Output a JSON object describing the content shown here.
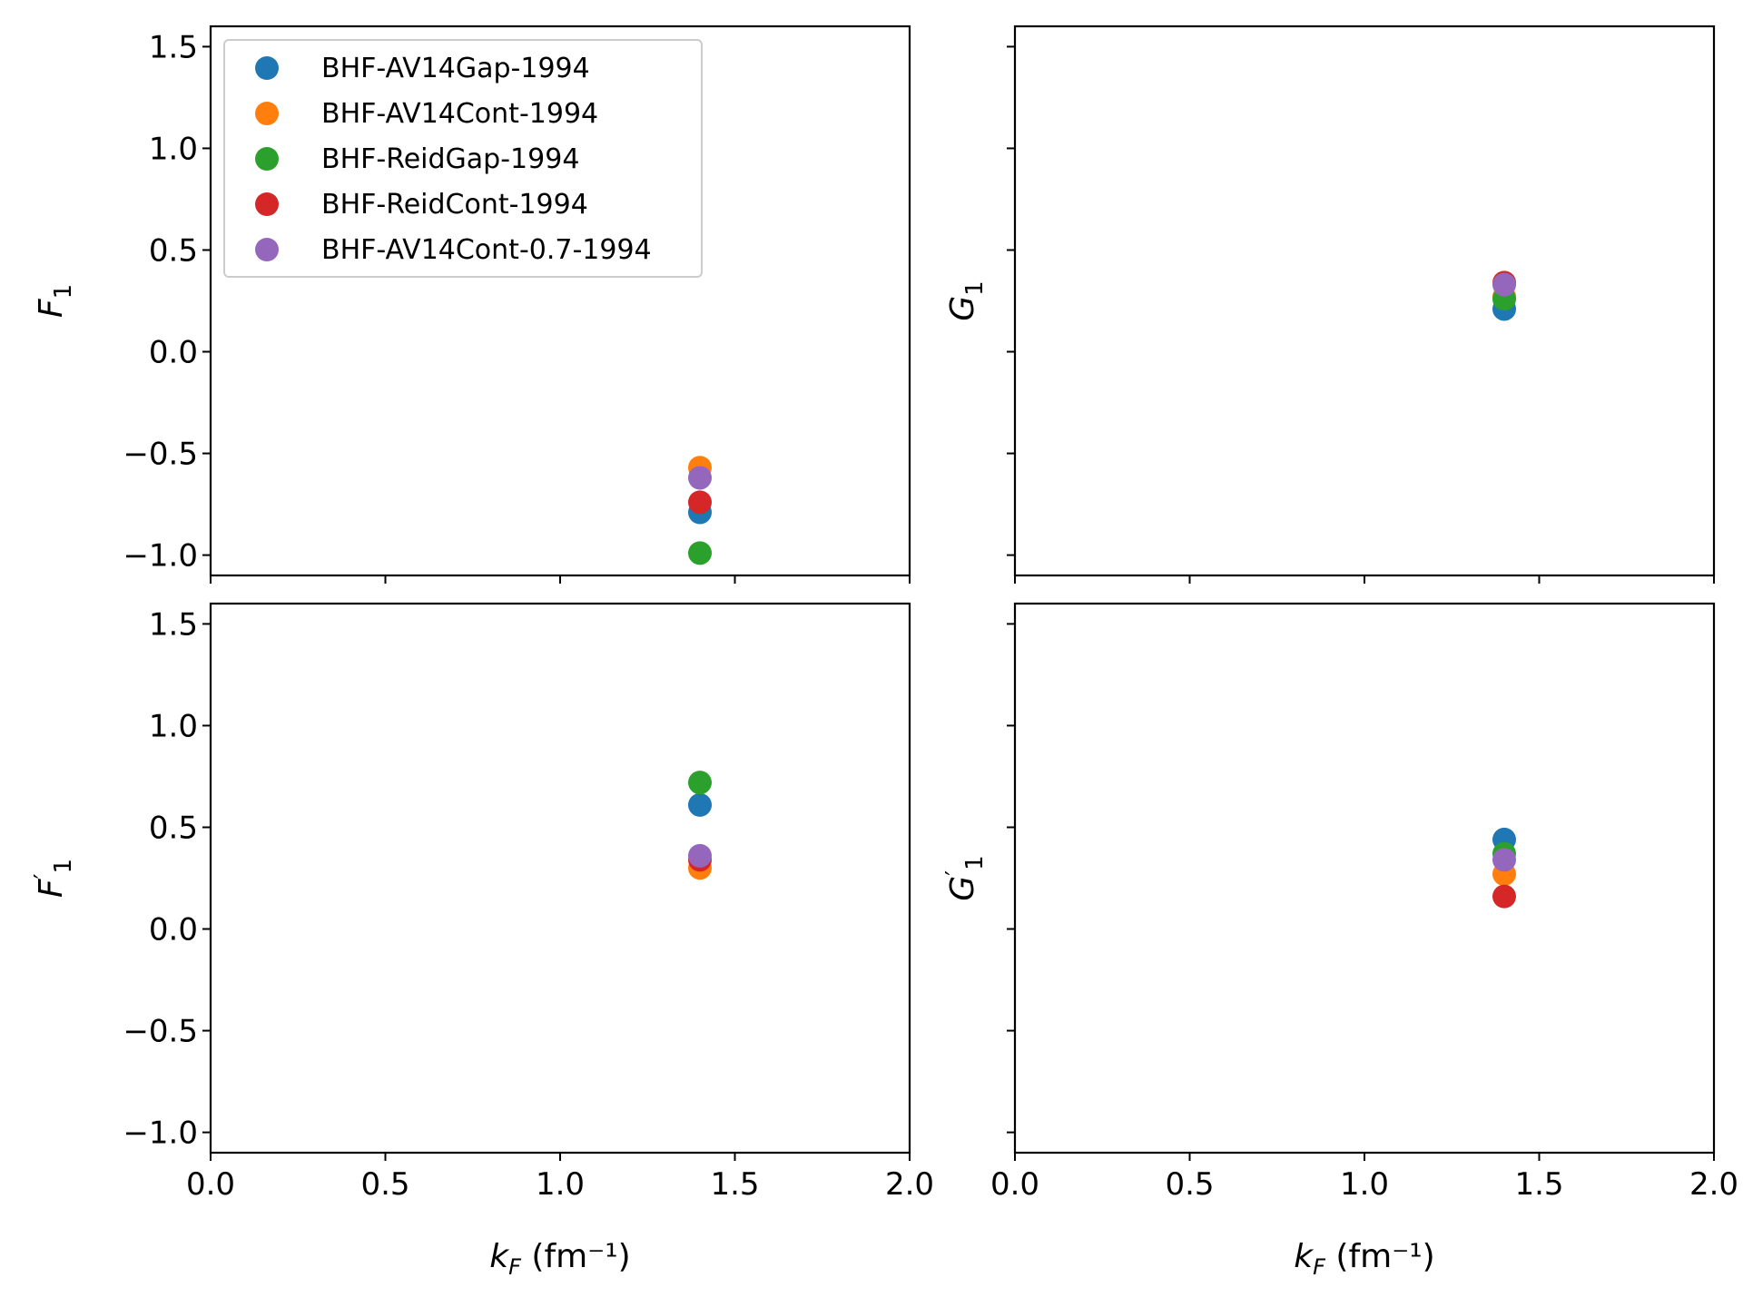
{
  "chart_data": {
    "type": "scatter",
    "legend": {
      "placement": "upper-left",
      "entries": [
        {
          "name": "BHF-AV14Gap-1994",
          "color": "#1f77b4"
        },
        {
          "name": "BHF-AV14Cont-1994",
          "color": "#ff7f0e"
        },
        {
          "name": "BHF-ReidGap-1994",
          "color": "#2ca02c"
        },
        {
          "name": "BHF-ReidCont-1994",
          "color": "#d62728"
        },
        {
          "name": "BHF-AV14Cont-0.7-1994",
          "color": "#9467bd"
        }
      ]
    },
    "xlim": [
      0.0,
      2.0
    ],
    "ylim": [
      -1.1,
      1.6
    ],
    "x_ticks": [
      "0.0",
      "0.5",
      "1.0",
      "1.5",
      "2.0"
    ],
    "y_ticks": [
      "−1.0",
      "−0.5",
      "0.0",
      "0.5",
      "1.0",
      "1.5"
    ],
    "xlabel": "k_F (fm⁻¹)",
    "grid": false,
    "panels": [
      {
        "id": "F1",
        "ylabel": "F_1",
        "ylabel_prime": false,
        "series": [
          {
            "name": "BHF-AV14Gap-1994",
            "x": [
              1.4
            ],
            "y": [
              -0.79
            ]
          },
          {
            "name": "BHF-AV14Cont-1994",
            "x": [
              1.4
            ],
            "y": [
              -0.57
            ]
          },
          {
            "name": "BHF-ReidGap-1994",
            "x": [
              1.4
            ],
            "y": [
              -0.99
            ]
          },
          {
            "name": "BHF-ReidCont-1994",
            "x": [
              1.4
            ],
            "y": [
              -0.74
            ]
          },
          {
            "name": "BHF-AV14Cont-0.7-1994",
            "x": [
              1.4
            ],
            "y": [
              -0.62
            ]
          }
        ]
      },
      {
        "id": "G1",
        "ylabel": "G_1",
        "ylabel_prime": false,
        "series": [
          {
            "name": "BHF-AV14Gap-1994",
            "x": [
              1.4
            ],
            "y": [
              0.21
            ]
          },
          {
            "name": "BHF-AV14Cont-1994",
            "x": [
              1.4
            ],
            "y": [
              0.27
            ]
          },
          {
            "name": "BHF-ReidGap-1994",
            "x": [
              1.4
            ],
            "y": [
              0.26
            ]
          },
          {
            "name": "BHF-ReidCont-1994",
            "x": [
              1.4
            ],
            "y": [
              0.34
            ]
          },
          {
            "name": "BHF-AV14Cont-0.7-1994",
            "x": [
              1.4
            ],
            "y": [
              0.33
            ]
          }
        ]
      },
      {
        "id": "F1prime",
        "ylabel": "F_1",
        "ylabel_prime": true,
        "series": [
          {
            "name": "BHF-AV14Gap-1994",
            "x": [
              1.4
            ],
            "y": [
              0.61
            ]
          },
          {
            "name": "BHF-AV14Cont-1994",
            "x": [
              1.4
            ],
            "y": [
              0.3
            ]
          },
          {
            "name": "BHF-ReidGap-1994",
            "x": [
              1.4
            ],
            "y": [
              0.72
            ]
          },
          {
            "name": "BHF-ReidCont-1994",
            "x": [
              1.4
            ],
            "y": [
              0.34
            ]
          },
          {
            "name": "BHF-AV14Cont-0.7-1994",
            "x": [
              1.4
            ],
            "y": [
              0.36
            ]
          }
        ]
      },
      {
        "id": "G1prime",
        "ylabel": "G_1",
        "ylabel_prime": true,
        "series": [
          {
            "name": "BHF-AV14Gap-1994",
            "x": [
              1.4
            ],
            "y": [
              0.44
            ]
          },
          {
            "name": "BHF-AV14Cont-1994",
            "x": [
              1.4
            ],
            "y": [
              0.27
            ]
          },
          {
            "name": "BHF-ReidGap-1994",
            "x": [
              1.4
            ],
            "y": [
              0.37
            ]
          },
          {
            "name": "BHF-ReidCont-1994",
            "x": [
              1.4
            ],
            "y": [
              0.16
            ]
          },
          {
            "name": "BHF-AV14Cont-0.7-1994",
            "x": [
              1.4
            ],
            "y": [
              0.34
            ]
          }
        ]
      }
    ]
  }
}
